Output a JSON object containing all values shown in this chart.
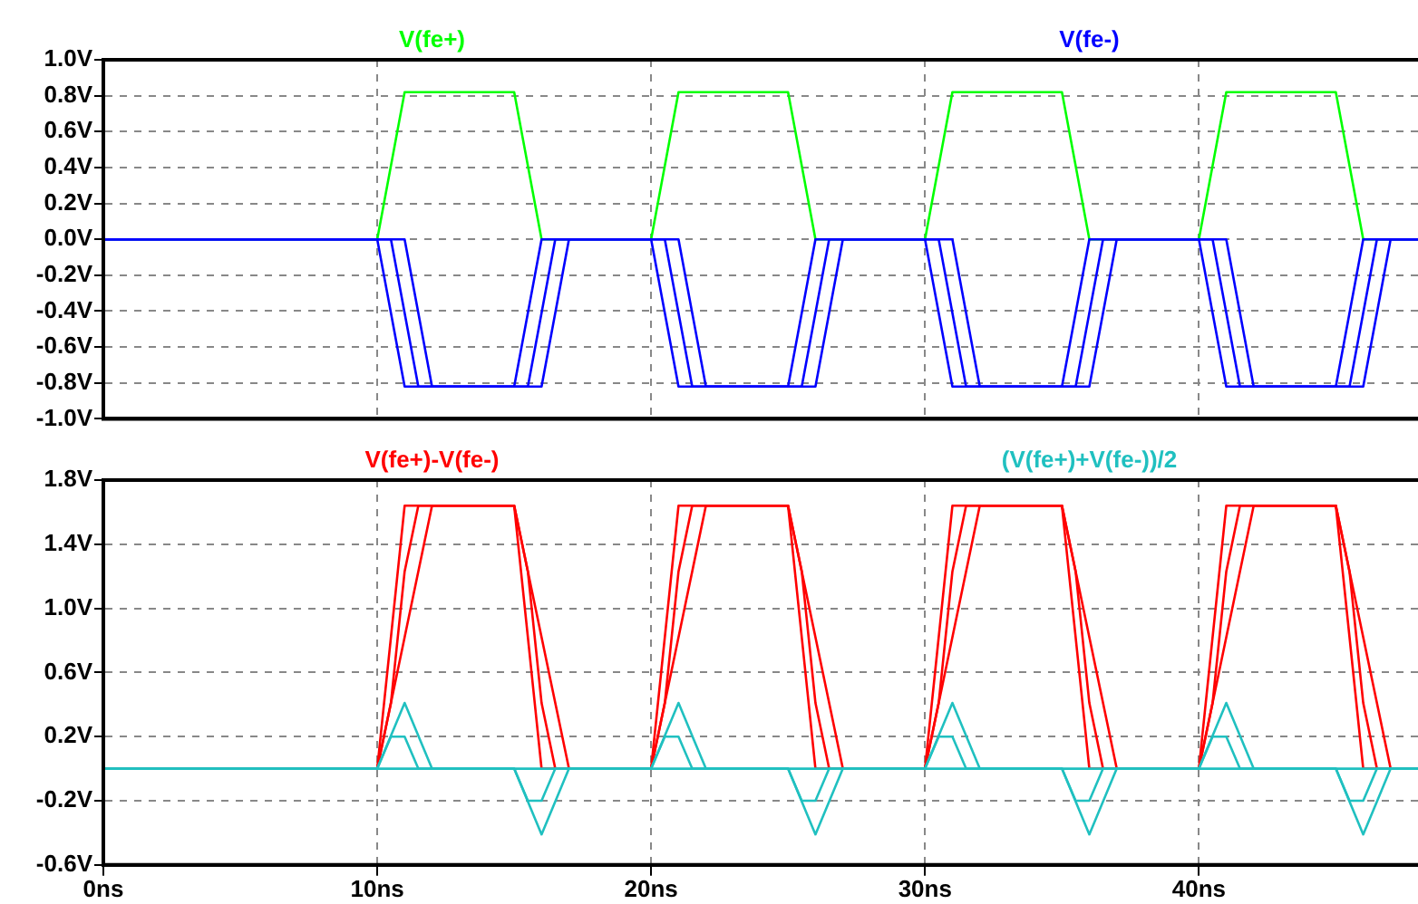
{
  "chart_data": [
    {
      "type": "line",
      "legend": "top",
      "grid": true,
      "tick_labels": "y",
      "marker": "none",
      "line_style": "solid",
      "xlim": [
        0,
        48
      ],
      "xticks": [
        {
          "value": 0,
          "label": null
        },
        {
          "value": 10,
          "label": null
        },
        {
          "value": 20,
          "label": null
        },
        {
          "value": 30,
          "label": null
        },
        {
          "value": 40,
          "label": null
        }
      ],
      "ylim": [
        -1,
        1
      ],
      "yticks": [
        {
          "value": -1,
          "label": "-1.0V"
        },
        {
          "value": -0.8,
          "label": "-0.8V"
        },
        {
          "value": -0.6,
          "label": "-0.6V"
        },
        {
          "value": -0.4,
          "label": "-0.4V"
        },
        {
          "value": -0.2,
          "label": "-0.2V"
        },
        {
          "value": 0,
          "label": "0.0V"
        },
        {
          "value": 0.2,
          "label": "0.2V"
        },
        {
          "value": 0.4,
          "label": "0.4V"
        },
        {
          "value": 0.6,
          "label": "0.6V"
        },
        {
          "value": 0.8,
          "label": "0.8V"
        },
        {
          "value": 1,
          "label": "1.0V"
        }
      ],
      "series": [
        {
          "name": "V(fe+)",
          "color": "#00ff00",
          "x": [
            0,
            10,
            11,
            15,
            16,
            20,
            21,
            25,
            26,
            30,
            31,
            35,
            36,
            40,
            41,
            45,
            46,
            48
          ],
          "values": [
            0,
            0,
            0.82,
            0.82,
            0,
            0,
            0.82,
            0.82,
            0,
            0,
            0.82,
            0.82,
            0,
            0,
            0.82,
            0.82,
            0,
            0
          ]
        },
        {
          "name": "V(fe-)",
          "color": "#0000ff",
          "x": [
            0,
            10,
            11,
            15,
            16,
            20,
            21,
            25,
            26,
            30,
            31,
            35,
            36,
            40,
            41,
            45,
            46,
            48
          ],
          "values": [
            0,
            0,
            -0.82,
            -0.82,
            0,
            0,
            -0.82,
            -0.82,
            0,
            0,
            -0.82,
            -0.82,
            0,
            0,
            -0.82,
            -0.82,
            0,
            0
          ]
        },
        {
          "color": "#0000ff",
          "x": [
            0,
            10.5,
            11.5,
            15.5,
            16.5,
            20.5,
            21.5,
            25.5,
            26.5,
            30.5,
            31.5,
            35.5,
            36.5,
            40.5,
            41.5,
            45.5,
            46.5,
            48
          ],
          "values": [
            0,
            0,
            -0.82,
            -0.82,
            0,
            0,
            -0.82,
            -0.82,
            0,
            0,
            -0.82,
            -0.82,
            0,
            0,
            -0.82,
            -0.82,
            0,
            0
          ]
        },
        {
          "color": "#0000ff",
          "x": [
            0,
            11,
            12,
            16,
            17,
            21,
            22,
            26,
            27,
            31,
            32,
            36,
            37,
            41,
            42,
            46,
            47,
            48
          ],
          "values": [
            0,
            0,
            -0.82,
            -0.82,
            0,
            0,
            -0.82,
            -0.82,
            0,
            0,
            -0.82,
            -0.82,
            0,
            0,
            -0.82,
            -0.82,
            0,
            0
          ]
        }
      ]
    },
    {
      "type": "line",
      "legend": "top",
      "grid": true,
      "marker": "none",
      "line_style": "solid",
      "xlim": [
        0,
        48
      ],
      "xticks": [
        {
          "value": 0,
          "label": "0ns"
        },
        {
          "value": 10,
          "label": "10ns"
        },
        {
          "value": 20,
          "label": "20ns"
        },
        {
          "value": 30,
          "label": "30ns"
        },
        {
          "value": 40,
          "label": "40ns"
        }
      ],
      "ylim": [
        -0.6,
        1.8
      ],
      "yticks": [
        {
          "value": -0.6,
          "label": "-0.6V"
        },
        {
          "value": -0.2,
          "label": "-0.2V"
        },
        {
          "value": 0.2,
          "label": "0.2V"
        },
        {
          "value": 0.6,
          "label": "0.6V"
        },
        {
          "value": 1,
          "label": "1.0V"
        },
        {
          "value": 1.4,
          "label": "1.4V"
        },
        {
          "value": 1.8,
          "label": "1.8V"
        }
      ],
      "series": [
        {
          "name": "V(fe+)-V(fe-)",
          "color": "#ff0000",
          "x": [
            0,
            10,
            11,
            15,
            16,
            20,
            21,
            25,
            26,
            30,
            31,
            35,
            36,
            40,
            41,
            45,
            46,
            48
          ],
          "values": [
            0,
            0,
            1.64,
            1.64,
            0,
            0,
            1.64,
            1.64,
            0,
            0,
            1.64,
            1.64,
            0,
            0,
            1.64,
            1.64,
            0,
            0
          ]
        },
        {
          "color": "#ff0000",
          "x": [
            0,
            10,
            10.5,
            11,
            11.5,
            15,
            15.5,
            16,
            16.5,
            20,
            20.5,
            21,
            21.5,
            25,
            25.5,
            26,
            26.5,
            30,
            30.5,
            31,
            31.5,
            35,
            35.5,
            36,
            36.5,
            40,
            40.5,
            41,
            41.5,
            45,
            45.5,
            46,
            46.5,
            48
          ],
          "values": [
            0,
            0,
            0.41,
            1.23,
            1.64,
            1.64,
            1.23,
            0.41,
            0,
            0,
            0.41,
            1.23,
            1.64,
            1.64,
            1.23,
            0.41,
            0,
            0,
            0.41,
            1.23,
            1.64,
            1.64,
            1.23,
            0.41,
            0,
            0,
            0.41,
            1.23,
            1.64,
            1.64,
            1.23,
            0.41,
            0,
            0
          ]
        },
        {
          "color": "#ff0000",
          "x": [
            0,
            10,
            11,
            12,
            15,
            16,
            17,
            20,
            21,
            22,
            25,
            26,
            27,
            30,
            31,
            32,
            35,
            36,
            37,
            40,
            41,
            42,
            45,
            46,
            47,
            48
          ],
          "values": [
            0,
            0,
            0.82,
            1.64,
            1.64,
            0.82,
            0,
            0,
            0.82,
            1.64,
            1.64,
            0.82,
            0,
            0,
            0.82,
            1.64,
            1.64,
            0.82,
            0,
            0,
            0.82,
            1.64,
            1.64,
            0.82,
            0,
            0
          ]
        },
        {
          "name": "(V(fe+)+V(fe-))/2",
          "color": "#20c0c0",
          "x": [
            0,
            48
          ],
          "values": [
            0,
            0
          ]
        },
        {
          "color": "#20c0c0",
          "x": [
            0,
            10,
            10.5,
            11,
            11.5,
            15,
            15.5,
            16,
            16.5,
            20,
            20.5,
            21,
            21.5,
            25,
            25.5,
            26,
            26.5,
            30,
            30.5,
            31,
            31.5,
            35,
            35.5,
            36,
            36.5,
            40,
            40.5,
            41,
            41.5,
            45,
            45.5,
            46,
            46.5,
            48
          ],
          "values": [
            0,
            0,
            0.2,
            0.2,
            0,
            0,
            -0.2,
            -0.2,
            0,
            0,
            0.2,
            0.2,
            0,
            0,
            -0.2,
            -0.2,
            0,
            0,
            0.2,
            0.2,
            0,
            0,
            -0.2,
            -0.2,
            0,
            0,
            0.2,
            0.2,
            0,
            0,
            -0.2,
            -0.2,
            0,
            0
          ]
        },
        {
          "color": "#20c0c0",
          "x": [
            0,
            10,
            11,
            12,
            15,
            16,
            17,
            20,
            21,
            22,
            25,
            26,
            27,
            30,
            31,
            32,
            35,
            36,
            37,
            40,
            41,
            42,
            45,
            46,
            47,
            48
          ],
          "values": [
            0,
            0,
            0.41,
            0,
            0,
            -0.41,
            0,
            0,
            0.41,
            0,
            0,
            -0.41,
            0,
            0,
            0.41,
            0,
            0,
            -0.41,
            0,
            0,
            0.41,
            0,
            0,
            -0.41,
            0,
            0
          ]
        }
      ]
    }
  ]
}
